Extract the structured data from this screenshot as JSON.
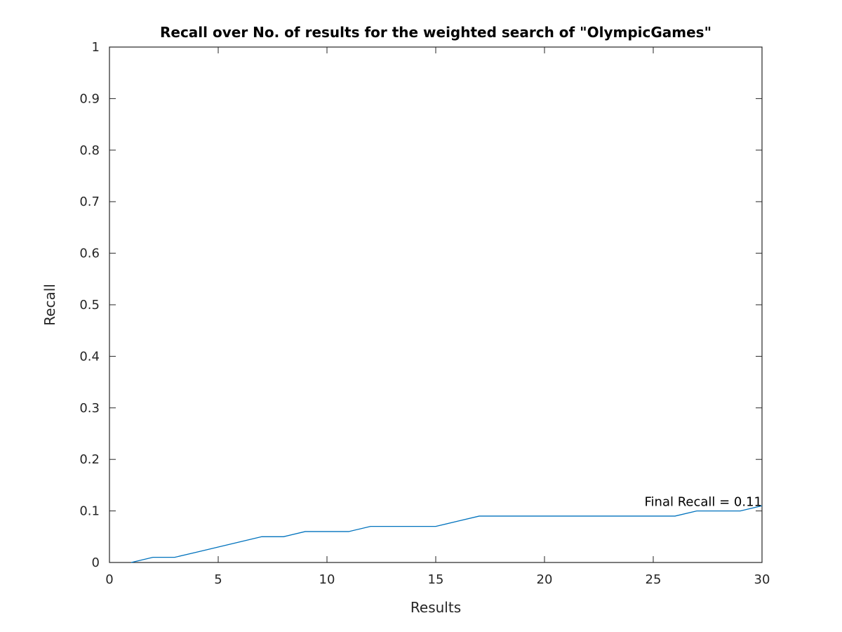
{
  "chart_data": {
    "type": "line",
    "title": "Recall over No. of results for the weighted search of \"OlympicGames\"",
    "xlabel": "Results",
    "ylabel": "Recall",
    "xlim": [
      0,
      30
    ],
    "ylim": [
      0,
      1
    ],
    "xticks": [
      0,
      5,
      10,
      15,
      20,
      25,
      30
    ],
    "yticks": [
      0,
      0.1,
      0.2,
      0.3,
      0.4,
      0.5,
      0.6,
      0.7,
      0.8,
      0.9,
      1
    ],
    "xtick_labels": [
      "0",
      "5",
      "10",
      "15",
      "20",
      "25",
      "30"
    ],
    "ytick_labels": [
      "0",
      "0.1",
      "0.2",
      "0.3",
      "0.4",
      "0.5",
      "0.6",
      "0.7",
      "0.8",
      "0.9",
      "1"
    ],
    "grid": false,
    "series": [
      {
        "color": "#0072bd",
        "x": [
          1,
          2,
          3,
          4,
          5,
          6,
          7,
          8,
          9,
          10,
          11,
          12,
          13,
          14,
          15,
          16,
          17,
          18,
          19,
          20,
          21,
          22,
          23,
          24,
          25,
          26,
          27,
          28,
          29,
          30
        ],
        "y": [
          0,
          0.01,
          0.01,
          0.02,
          0.03,
          0.04,
          0.05,
          0.05,
          0.06,
          0.06,
          0.06,
          0.07,
          0.07,
          0.07,
          0.07,
          0.08,
          0.09,
          0.09,
          0.09,
          0.09,
          0.09,
          0.09,
          0.09,
          0.09,
          0.09,
          0.09,
          0.1,
          0.1,
          0.1,
          0.11
        ]
      }
    ],
    "annotations": [
      {
        "text": "Final Recall = 0.11",
        "x": 30,
        "y": 0.11
      }
    ]
  }
}
